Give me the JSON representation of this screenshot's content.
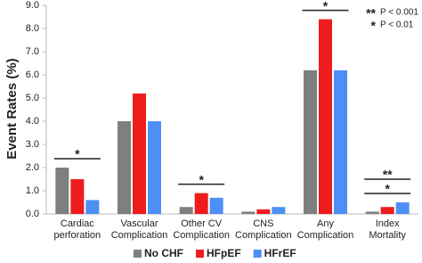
{
  "chart_data": {
    "type": "bar",
    "y_label": "Event Rates (%)",
    "categories": [
      "Cardiac\nperforation",
      "Vascular\nComplication",
      "Other CV\nComplication",
      "CNS\nComplication",
      "Any\nComplication",
      "Index\nMortality"
    ],
    "series": [
      {
        "name": "No CHF",
        "color": "#7f7f7f",
        "values": [
          2.0,
          4.0,
          0.3,
          0.1,
          6.2,
          0.1
        ]
      },
      {
        "name": "HFpEF",
        "color": "#ee1c1c",
        "values": [
          1.5,
          5.2,
          0.9,
          0.2,
          8.4,
          0.3
        ]
      },
      {
        "name": "HFrEF",
        "color": "#4d8ff5",
        "values": [
          0.6,
          4.0,
          0.7,
          0.3,
          6.2,
          0.5
        ]
      }
    ],
    "ylim": [
      0,
      9
    ],
    "yticks": [
      {
        "value": 0,
        "label": "0.0"
      },
      {
        "value": 1,
        "label": "1.0"
      },
      {
        "value": 2,
        "label": "2.0"
      },
      {
        "value": 3,
        "label": "3.0"
      },
      {
        "value": 4,
        "label": "4.0"
      },
      {
        "value": 5,
        "label": "5.0"
      },
      {
        "value": 6,
        "label": "6.0"
      },
      {
        "value": 7,
        "label": "7.0"
      },
      {
        "value": 8,
        "label": "8.0"
      },
      {
        "value": 9,
        "label": "9.0"
      }
    ],
    "significance": [
      [
        "*"
      ],
      [],
      [
        "*"
      ],
      [],
      [
        "*"
      ],
      [
        "*",
        "**"
      ]
    ],
    "significance_key": [
      {
        "symbol": "**",
        "text": "P < 0.001"
      },
      {
        "symbol": "*",
        "text": "P < 0.01"
      }
    ],
    "legend": "bottom"
  }
}
